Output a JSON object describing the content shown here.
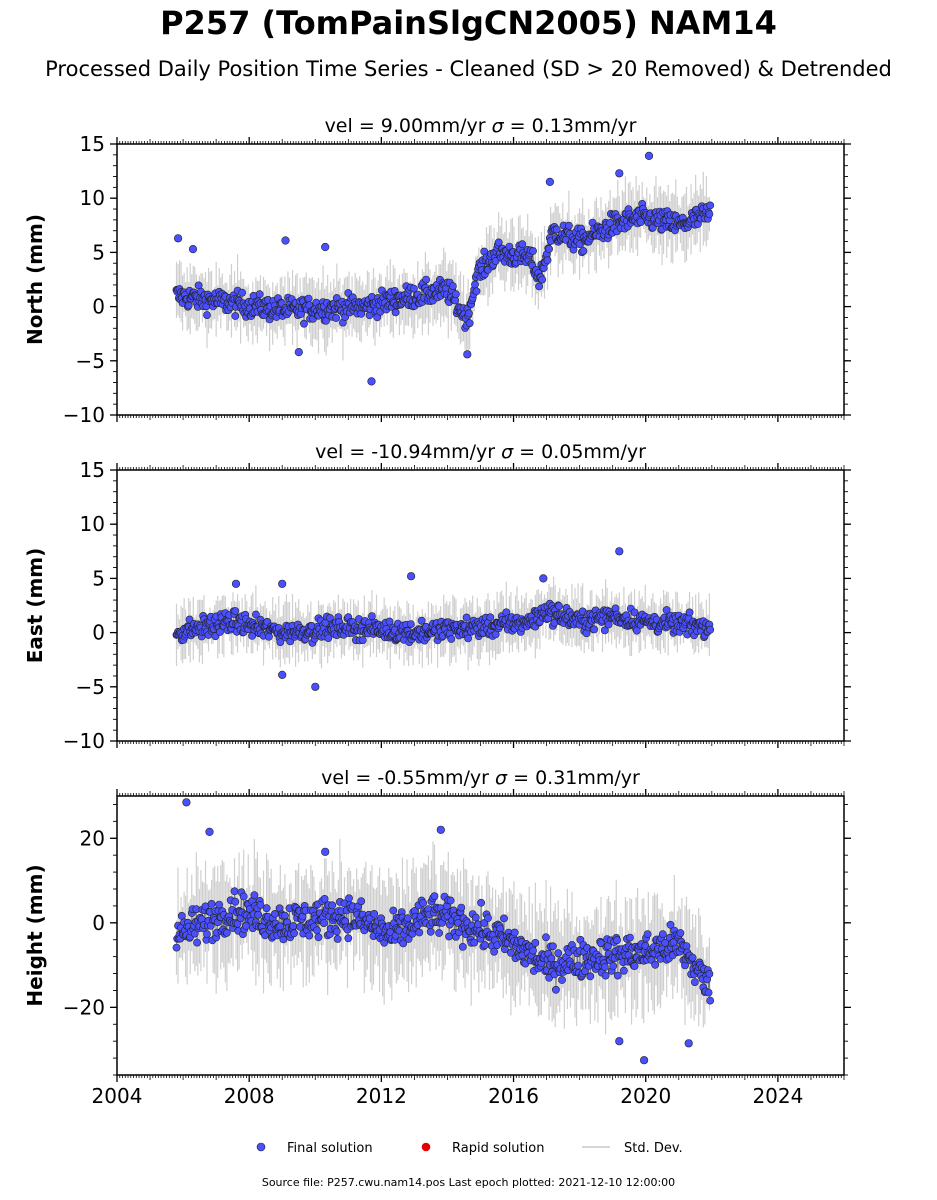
{
  "title": "P257 (TomPainSlgCN2005) NAM14",
  "subtitle": "Processed Daily Position Time Series - Cleaned (SD > 20 Removed) & Detrended",
  "footer": "Source file: P257.cwu.nam14.pos  Last epoch plotted: 2021-12-10 12:00:00",
  "legend": {
    "items": [
      {
        "label": "Final solution",
        "color": "#4a50ff",
        "kind": "dot"
      },
      {
        "label": "Rapid solution",
        "color": "#e00000",
        "kind": "dot"
      },
      {
        "label": "Std. Dev.",
        "color": "#c8c8c8",
        "kind": "line"
      }
    ]
  },
  "chart_data": [
    {
      "type": "scatter",
      "component": "north",
      "title_text": "vel = 9.00mm/yr",
      "sigma_text": "= 0.13mm/yr",
      "ylabel": "North (mm)",
      "xlim": [
        2004,
        2026
      ],
      "ylim": [
        -10,
        15
      ],
      "yticks": [
        -10,
        -5,
        0,
        5,
        10,
        15
      ],
      "xticks": [
        2004,
        2008,
        2012,
        2016,
        2020,
        2024
      ],
      "show_xtick_labels": false,
      "trend": [
        [
          2005.8,
          1.0
        ],
        [
          2009.0,
          -0.3
        ],
        [
          2011.5,
          0.0
        ],
        [
          2013.0,
          1.0
        ],
        [
          2014.0,
          1.5
        ],
        [
          2014.6,
          -1.2
        ],
        [
          2014.9,
          3.0
        ],
        [
          2015.5,
          5.0
        ],
        [
          2016.5,
          4.5
        ],
        [
          2016.8,
          2.5
        ],
        [
          2017.2,
          7.0
        ],
        [
          2018.0,
          6.0
        ],
        [
          2019.0,
          7.5
        ],
        [
          2019.5,
          8.0
        ],
        [
          2020.0,
          8.2
        ],
        [
          2021.0,
          7.5
        ],
        [
          2021.9,
          8.5
        ]
      ],
      "spread": 1.4,
      "y_min_series": -4.5,
      "outliers": [
        [
          2005.85,
          6.3
        ],
        [
          2006.3,
          5.3
        ],
        [
          2009.1,
          6.1
        ],
        [
          2010.3,
          5.5
        ],
        [
          2011.7,
          -6.9
        ],
        [
          2017.1,
          11.5
        ],
        [
          2019.2,
          12.3
        ],
        [
          2020.1,
          13.9
        ],
        [
          2009.5,
          -4.2
        ],
        [
          2014.6,
          -4.4
        ]
      ],
      "x_range": [
        2005.8,
        2021.95
      ]
    },
    {
      "type": "scatter",
      "component": "east",
      "title_text": "vel = -10.94mm/yr",
      "sigma_text": "= 0.05mm/yr",
      "ylabel": "East (mm)",
      "xlim": [
        2004,
        2026
      ],
      "ylim": [
        -10,
        15
      ],
      "yticks": [
        -10,
        -5,
        0,
        5,
        10,
        15
      ],
      "xticks": [
        2004,
        2008,
        2012,
        2016,
        2020,
        2024
      ],
      "show_xtick_labels": false,
      "trend": [
        [
          2005.8,
          0.0
        ],
        [
          2007.5,
          1.0
        ],
        [
          2009.0,
          0.0
        ],
        [
          2011.0,
          0.5
        ],
        [
          2013.0,
          0.0
        ],
        [
          2015.0,
          0.5
        ],
        [
          2016.5,
          1.0
        ],
        [
          2017.0,
          2.0
        ],
        [
          2018.0,
          1.0
        ],
        [
          2019.0,
          1.5
        ],
        [
          2020.0,
          1.0
        ],
        [
          2021.9,
          0.5
        ]
      ],
      "spread": 1.2,
      "y_min_series": -3.0,
      "outliers": [
        [
          2012.9,
          5.2
        ],
        [
          2019.2,
          7.5
        ],
        [
          2010.0,
          -5.0
        ],
        [
          2009.0,
          -3.9
        ],
        [
          2007.6,
          4.5
        ],
        [
          2009.0,
          4.5
        ],
        [
          2016.9,
          5.0
        ]
      ],
      "x_range": [
        2005.8,
        2021.95
      ]
    },
    {
      "type": "scatter",
      "component": "height",
      "title_text": "vel = -0.55mm/yr",
      "sigma_text": "= 0.31mm/yr",
      "ylabel": "Height (mm)",
      "xlim": [
        2004,
        2026
      ],
      "ylim": [
        -36,
        30
      ],
      "yticks": [
        -20,
        0,
        20
      ],
      "xticks": [
        2004,
        2008,
        2012,
        2016,
        2020,
        2024
      ],
      "show_xtick_labels": true,
      "xticklabels": [
        "2004",
        "2008",
        "2012",
        "2016",
        "2020",
        "2024"
      ],
      "trend": [
        [
          2005.8,
          -3.0
        ],
        [
          2007.5,
          3.0
        ],
        [
          2009.0,
          0.0
        ],
        [
          2011.0,
          2.0
        ],
        [
          2012.3,
          -3.0
        ],
        [
          2013.5,
          2.0
        ],
        [
          2014.5,
          0.0
        ],
        [
          2016.0,
          -5.0
        ],
        [
          2017.0,
          -10.0
        ],
        [
          2018.5,
          -8.0
        ],
        [
          2020.0,
          -7.0
        ],
        [
          2021.0,
          -5.0
        ],
        [
          2021.9,
          -15.0
        ]
      ],
      "spread": 6.0,
      "y_min_series": -28.0,
      "outliers": [
        [
          2006.1,
          28.5
        ],
        [
          2013.8,
          22.0
        ],
        [
          2006.8,
          21.5
        ],
        [
          2010.3,
          16.8
        ],
        [
          2019.95,
          -32.5
        ],
        [
          2019.2,
          -28.0
        ],
        [
          2021.3,
          -28.5
        ]
      ],
      "x_range": [
        2005.8,
        2021.95
      ]
    }
  ]
}
